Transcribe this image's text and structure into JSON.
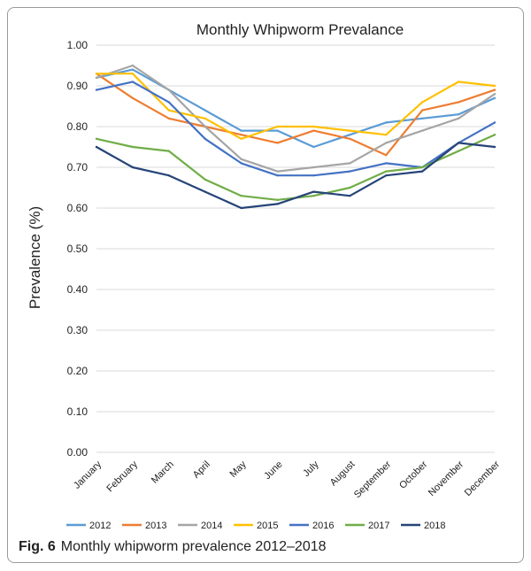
{
  "chart_data": {
    "type": "line",
    "title": "Monthly Whipworm Prevalance",
    "xlabel": "",
    "ylabel": "Prevalence (%)",
    "ylim": [
      0,
      1
    ],
    "yticks": [
      "0.00",
      "0.10",
      "0.20",
      "0.30",
      "0.40",
      "0.50",
      "0.60",
      "0.70",
      "0.80",
      "0.90",
      "1.00"
    ],
    "categories": [
      "January",
      "February",
      "March",
      "April",
      "May",
      "June",
      "July",
      "August",
      "September",
      "October",
      "November",
      "December"
    ],
    "grid": "horizontal",
    "legend_position": "bottom",
    "series": [
      {
        "name": "2012",
        "color": "#5B9BD5",
        "values": [
          0.92,
          0.94,
          0.89,
          0.84,
          0.79,
          0.79,
          0.75,
          0.78,
          0.81,
          0.82,
          0.83,
          0.87
        ]
      },
      {
        "name": "2013",
        "color": "#ED7D31",
        "values": [
          0.93,
          0.87,
          0.82,
          0.8,
          0.78,
          0.76,
          0.79,
          0.77,
          0.73,
          0.84,
          0.86,
          0.89
        ]
      },
      {
        "name": "2014",
        "color": "#A5A5A5",
        "values": [
          0.92,
          0.95,
          0.89,
          0.8,
          0.72,
          0.69,
          0.7,
          0.71,
          0.76,
          0.79,
          0.82,
          0.88
        ]
      },
      {
        "name": "2015",
        "color": "#FFC000",
        "values": [
          0.93,
          0.93,
          0.84,
          0.82,
          0.77,
          0.8,
          0.8,
          0.79,
          0.78,
          0.86,
          0.91,
          0.9
        ]
      },
      {
        "name": "2016",
        "color": "#4472C4",
        "values": [
          0.89,
          0.91,
          0.86,
          0.77,
          0.71,
          0.68,
          0.68,
          0.69,
          0.71,
          0.7,
          0.76,
          0.81
        ]
      },
      {
        "name": "2017",
        "color": "#70AD47",
        "values": [
          0.77,
          0.75,
          0.74,
          0.67,
          0.63,
          0.62,
          0.63,
          0.65,
          0.69,
          0.7,
          0.74,
          0.78
        ]
      },
      {
        "name": "2018",
        "color": "#264478",
        "values": [
          0.75,
          0.7,
          0.68,
          0.64,
          0.6,
          0.61,
          0.64,
          0.63,
          0.68,
          0.69,
          0.76,
          0.75
        ]
      }
    ]
  },
  "caption": {
    "label": "Fig. 6",
    "text": "Monthly whipworm prevalence 2012–2018"
  }
}
